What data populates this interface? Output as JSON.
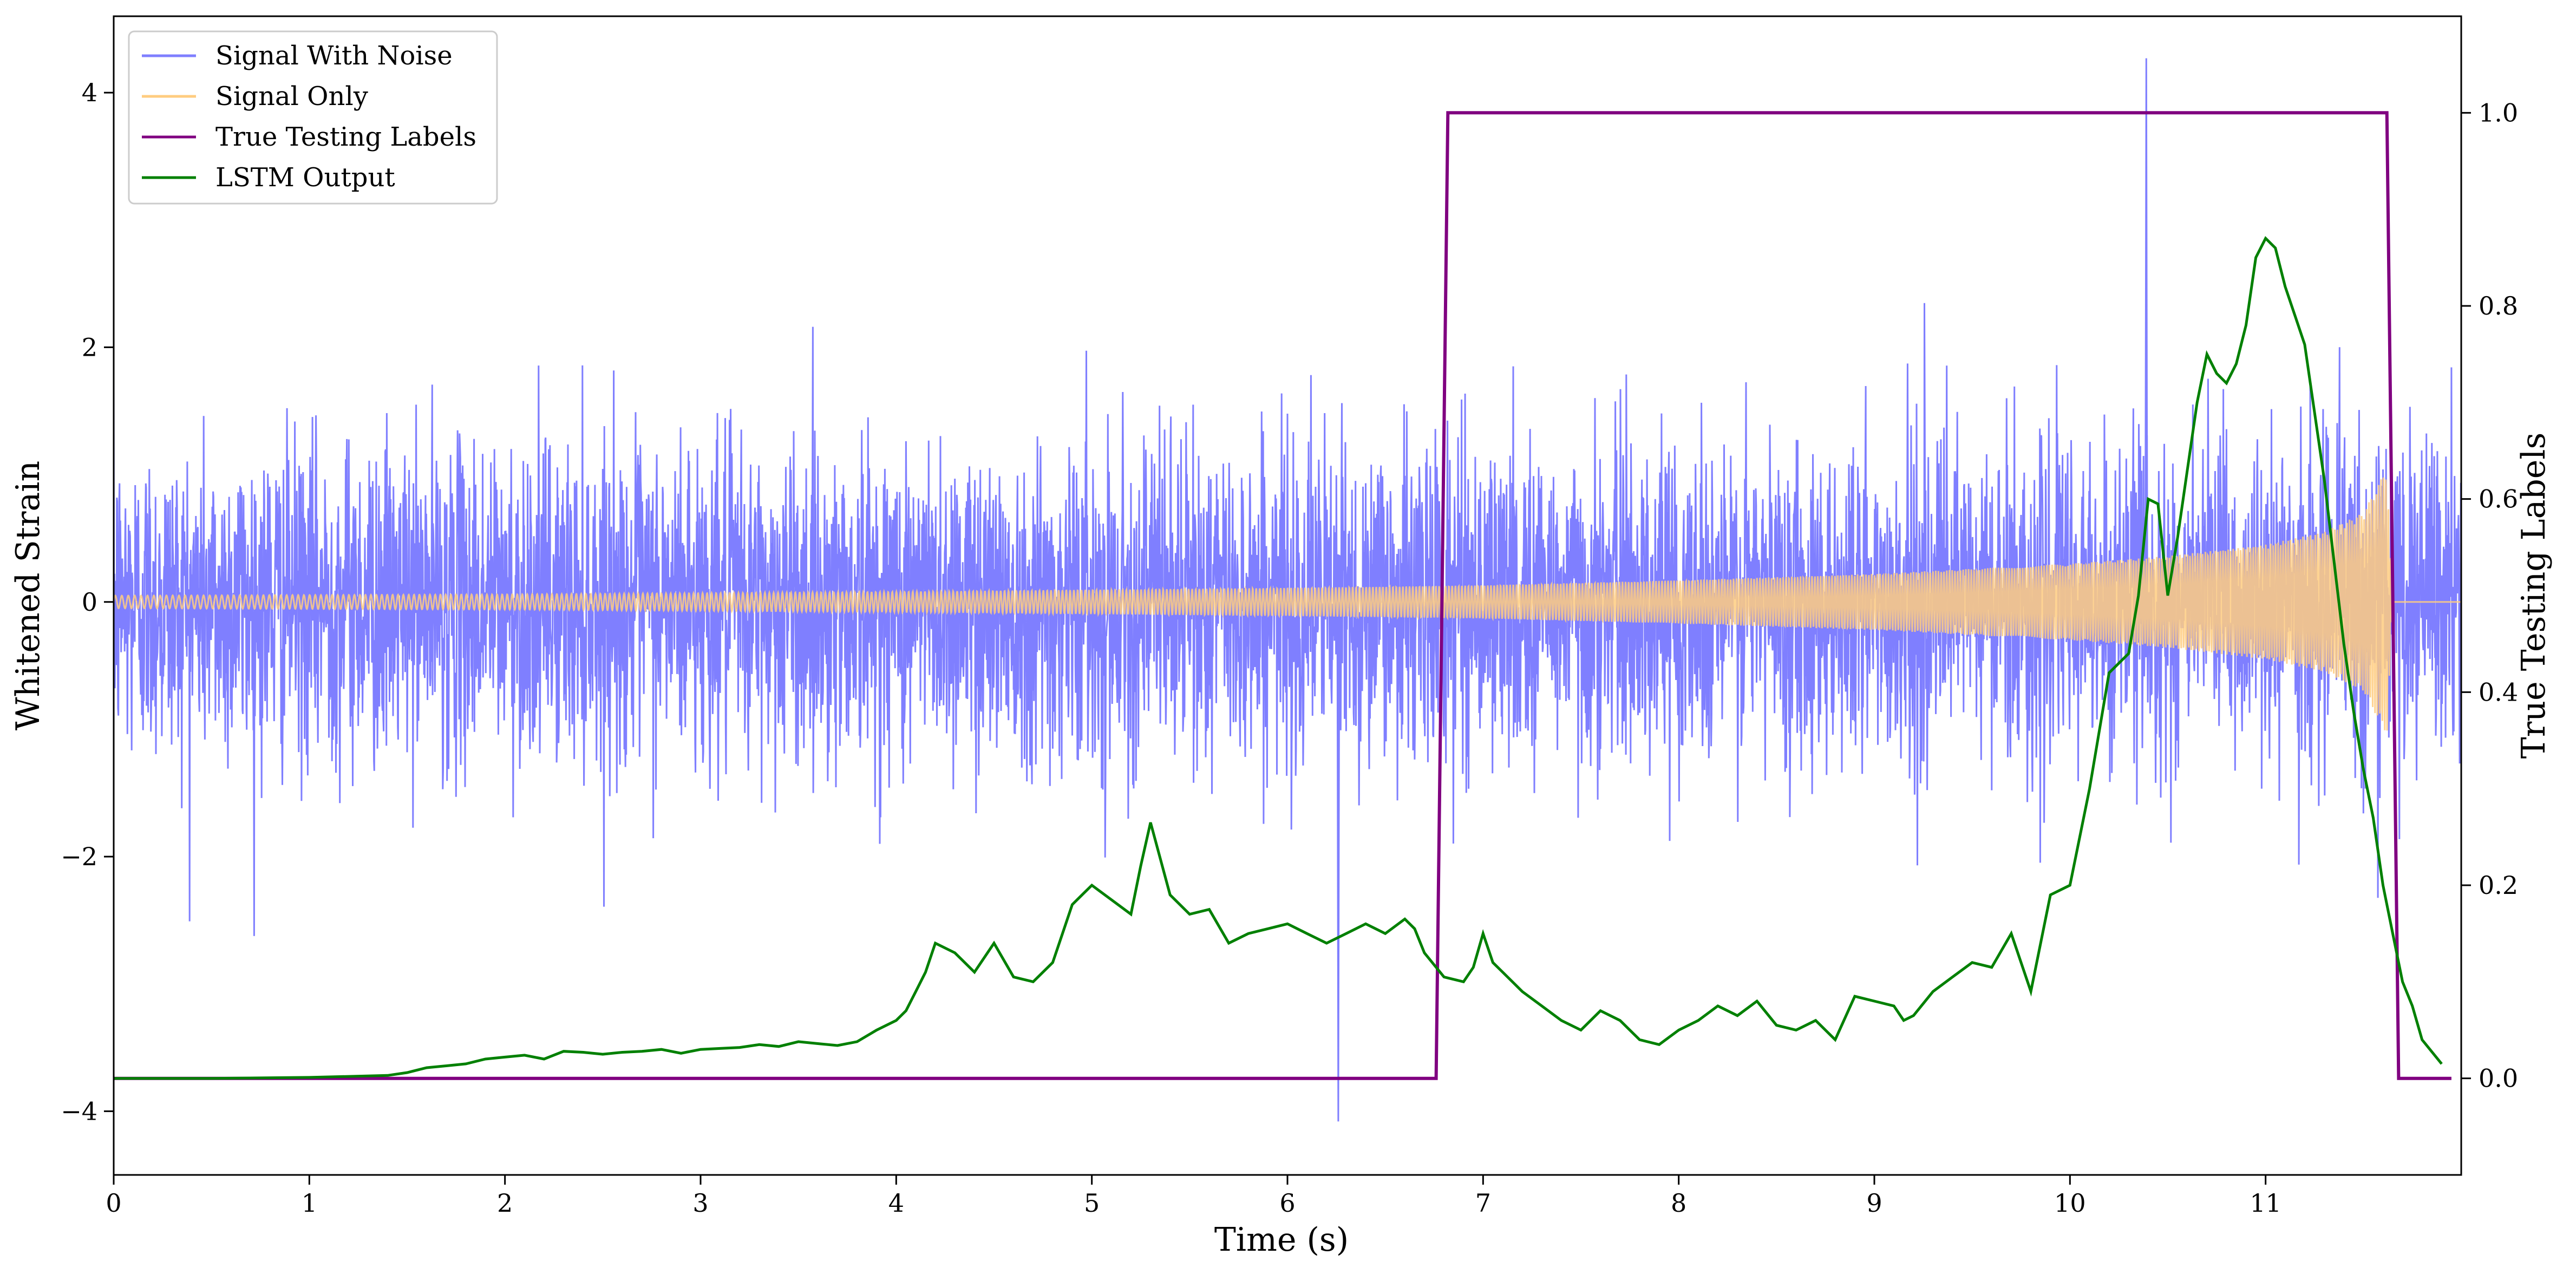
{
  "chart_data": {
    "type": "line",
    "title": "",
    "xlabel": "Time (s)",
    "ylabel_left": "Whitened Strain",
    "ylabel_right": "True Testing Labels",
    "xlim": [
      0,
      12
    ],
    "ylim_left": [
      -4.5,
      4.6
    ],
    "ylim_right": [
      -0.1,
      1.1
    ],
    "x_ticks": [
      0,
      1,
      2,
      3,
      4,
      5,
      6,
      7,
      8,
      9,
      10,
      11
    ],
    "y_ticks_left": [
      -4,
      -2,
      0,
      2,
      4
    ],
    "y_ticks_right": [
      0.0,
      0.2,
      0.4,
      0.6,
      0.8,
      1.0
    ],
    "x_tick_labels": [
      "0",
      "1",
      "2",
      "3",
      "4",
      "5",
      "6",
      "7",
      "8",
      "9",
      "10",
      "11"
    ],
    "y_tick_labels_left": [
      "−4",
      "−2",
      "0",
      "2",
      "4"
    ],
    "y_tick_labels_right": [
      "0.0",
      "0.2",
      "0.4",
      "0.6",
      "0.8",
      "1.0"
    ],
    "grid": false,
    "legend_position": "top-left",
    "series": [
      {
        "name": "Signal With Noise",
        "axis": "left",
        "color": "#7f7fff",
        "description_values": {
          "noise_sigma": 0.62,
          "typical_peak_range": [
            -2.8,
            3.1
          ],
          "max_spike": [
            10.39,
            4.27
          ],
          "min_spike": [
            6.26,
            -4.08
          ]
        }
      },
      {
        "name": "Signal Only",
        "axis": "left",
        "color": "#ffcc80",
        "envelope": [
          [
            0,
            0.05
          ],
          [
            2,
            0.06
          ],
          [
            4,
            0.08
          ],
          [
            6,
            0.11
          ],
          [
            7,
            0.13
          ],
          [
            8,
            0.17
          ],
          [
            9,
            0.22
          ],
          [
            10,
            0.3
          ],
          [
            10.5,
            0.36
          ],
          [
            11,
            0.45
          ],
          [
            11.3,
            0.55
          ],
          [
            11.5,
            0.7
          ],
          [
            11.62,
            1.05
          ],
          [
            11.65,
            0.0
          ],
          [
            12,
            0.0
          ]
        ]
      },
      {
        "name": "True Testing Labels",
        "axis": "right",
        "color": "#800080",
        "x": [
          0,
          6.76,
          6.82,
          11.62,
          11.68,
          11.95
        ],
        "y": [
          0,
          0,
          1,
          1,
          0,
          0
        ]
      },
      {
        "name": "LSTM Output",
        "axis": "right",
        "color": "#008000",
        "x": [
          0,
          0.5,
          1.0,
          1.4,
          1.5,
          1.6,
          1.7,
          1.8,
          1.9,
          2.0,
          2.1,
          2.2,
          2.3,
          2.4,
          2.5,
          2.6,
          2.7,
          2.8,
          2.9,
          3.0,
          3.1,
          3.2,
          3.3,
          3.4,
          3.5,
          3.6,
          3.7,
          3.8,
          3.9,
          4.0,
          4.05,
          4.1,
          4.15,
          4.2,
          4.3,
          4.4,
          4.5,
          4.6,
          4.7,
          4.8,
          4.85,
          4.9,
          4.95,
          5.0,
          5.1,
          5.2,
          5.25,
          5.3,
          5.4,
          5.5,
          5.6,
          5.7,
          5.8,
          5.9,
          6.0,
          6.1,
          6.2,
          6.3,
          6.4,
          6.5,
          6.6,
          6.65,
          6.7,
          6.8,
          6.9,
          6.95,
          7.0,
          7.05,
          7.1,
          7.2,
          7.3,
          7.4,
          7.5,
          7.6,
          7.7,
          7.8,
          7.9,
          8.0,
          8.1,
          8.2,
          8.3,
          8.4,
          8.5,
          8.6,
          8.7,
          8.8,
          8.9,
          9.0,
          9.1,
          9.15,
          9.2,
          9.3,
          9.4,
          9.5,
          9.6,
          9.7,
          9.8,
          9.9,
          10.0,
          10.1,
          10.2,
          10.3,
          10.35,
          10.4,
          10.45,
          10.5,
          10.55,
          10.6,
          10.65,
          10.7,
          10.75,
          10.8,
          10.85,
          10.9,
          10.95,
          11.0,
          11.05,
          11.1,
          11.15,
          11.2,
          11.3,
          11.4,
          11.45,
          11.5,
          11.55,
          11.6,
          11.65,
          11.7,
          11.75,
          11.8,
          11.9
        ],
        "y": [
          0.0,
          0.0,
          0.001,
          0.003,
          0.006,
          0.011,
          0.013,
          0.015,
          0.02,
          0.022,
          0.024,
          0.02,
          0.028,
          0.027,
          0.025,
          0.027,
          0.028,
          0.03,
          0.026,
          0.03,
          0.031,
          0.032,
          0.035,
          0.033,
          0.038,
          0.036,
          0.034,
          0.038,
          0.05,
          0.06,
          0.07,
          0.09,
          0.11,
          0.14,
          0.13,
          0.11,
          0.14,
          0.105,
          0.1,
          0.12,
          0.15,
          0.18,
          0.19,
          0.2,
          0.185,
          0.17,
          0.22,
          0.265,
          0.19,
          0.17,
          0.175,
          0.14,
          0.15,
          0.155,
          0.16,
          0.15,
          0.14,
          0.15,
          0.16,
          0.15,
          0.165,
          0.155,
          0.13,
          0.105,
          0.1,
          0.115,
          0.15,
          0.12,
          0.11,
          0.09,
          0.075,
          0.06,
          0.05,
          0.07,
          0.06,
          0.04,
          0.035,
          0.05,
          0.06,
          0.075,
          0.065,
          0.08,
          0.055,
          0.05,
          0.06,
          0.04,
          0.085,
          0.08,
          0.075,
          0.06,
          0.065,
          0.09,
          0.105,
          0.12,
          0.115,
          0.15,
          0.09,
          0.19,
          0.2,
          0.3,
          0.42,
          0.44,
          0.5,
          0.6,
          0.595,
          0.5,
          0.56,
          0.63,
          0.7,
          0.75,
          0.73,
          0.72,
          0.74,
          0.78,
          0.85,
          0.87,
          0.86,
          0.82,
          0.79,
          0.76,
          0.62,
          0.45,
          0.38,
          0.32,
          0.27,
          0.2,
          0.15,
          0.1,
          0.075,
          0.04,
          0.015
        ]
      }
    ]
  }
}
